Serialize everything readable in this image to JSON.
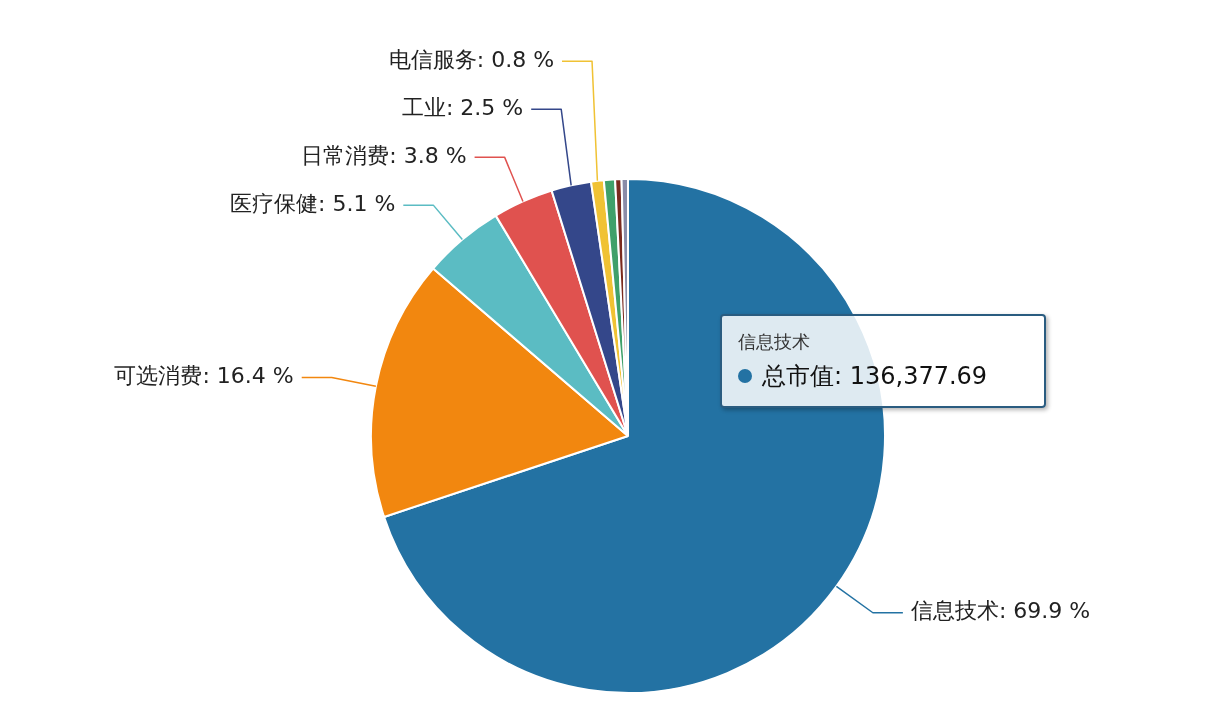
{
  "chart_data": {
    "type": "pie",
    "categories": [
      "信息技术",
      "可选消费",
      "医疗保健",
      "日常消费",
      "工业",
      "电信服务",
      null,
      null,
      null
    ],
    "values": [
      69.9,
      16.4,
      5.1,
      3.8,
      2.5,
      0.8,
      0.7,
      0.4,
      0.4
    ],
    "value_labels": [
      ": 69.9 %",
      ": 16.4 %",
      ": 5.1 %",
      ": 3.8 %",
      ": 2.5 %",
      ": 0.8 %",
      null,
      null,
      null
    ],
    "colors": [
      "#2372a3",
      "#f2870f",
      "#5bbcc3",
      "#e0524f",
      "#34478a",
      "#f0c234",
      "#3fa06a",
      "#7a2a1e",
      "#8a8ca8"
    ],
    "annotations": [
      "信息技术",
      "总市值: 136,377.69"
    ],
    "legend": false
  }
}
